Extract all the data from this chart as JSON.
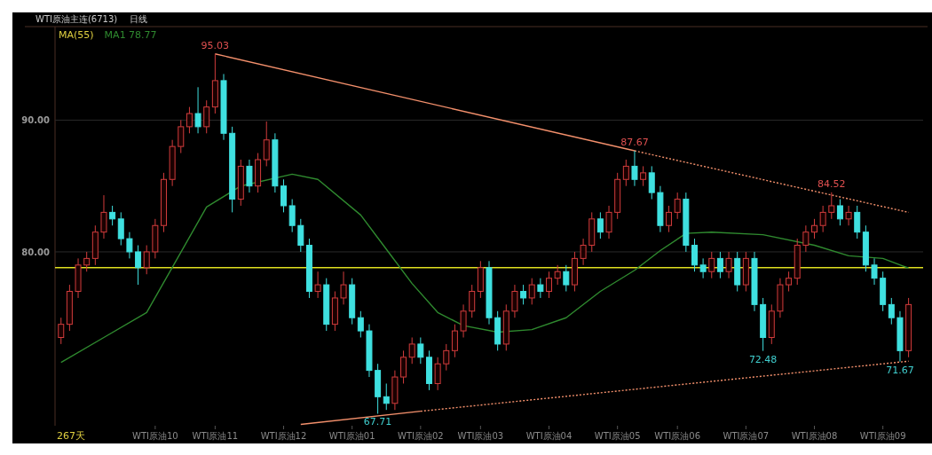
{
  "chart_data": {
    "type": "candlestick",
    "title": "WTI原油主连(6713)",
    "subtitle": "日线",
    "legend_title": "MA(55)",
    "legend": "top left",
    "grid": "y",
    "categories": [
      null,
      null,
      null,
      null,
      null,
      null,
      null,
      null,
      null,
      null,
      null,
      "WTI原油10",
      null,
      null,
      null,
      null,
      null,
      null,
      "WTI原油11",
      null,
      null,
      null,
      null,
      null,
      null,
      null,
      "WTI原油12",
      null,
      null,
      null,
      null,
      null,
      null,
      null,
      "WTI原油01",
      null,
      null,
      null,
      null,
      null,
      null,
      null,
      "WTI原油02",
      null,
      null,
      null,
      null,
      null,
      null,
      "WTI原油03",
      null,
      null,
      null,
      null,
      null,
      null,
      null,
      "WTI原油04",
      null,
      null,
      null,
      null,
      null,
      null,
      null,
      "WTI原油05",
      null,
      null,
      null,
      null,
      null,
      null,
      "WTI原油06",
      null,
      null,
      null,
      null,
      null,
      null,
      null,
      "WTI原油07",
      null,
      null,
      null,
      null,
      null,
      null,
      null,
      "WTI原油08",
      null,
      null,
      null,
      null,
      null,
      null,
      null,
      "WTI原油09",
      null,
      null,
      null
    ],
    "ylim": [
      66.8,
      97.1
    ],
    "yticks": [
      {
        "value": 80,
        "label": "80.00"
      },
      {
        "value": 90,
        "label": "90.00"
      }
    ],
    "ohlc": [
      [
        73.5,
        75.0,
        73.0,
        74.5
      ],
      [
        74.5,
        77.5,
        74.0,
        77.0
      ],
      [
        77.0,
        79.5,
        76.5,
        79.0
      ],
      [
        79.0,
        80.0,
        78.5,
        79.5
      ],
      [
        79.5,
        82.0,
        79.0,
        81.5
      ],
      [
        81.5,
        84.3,
        81.0,
        83.0
      ],
      [
        83.0,
        83.5,
        82.0,
        82.5
      ],
      [
        82.5,
        83.0,
        80.5,
        81.0
      ],
      [
        81.0,
        81.5,
        79.5,
        80.0
      ],
      [
        80.0,
        80.5,
        77.5,
        78.8
      ],
      [
        78.8,
        80.5,
        78.3,
        80.0
      ],
      [
        80.0,
        82.5,
        79.5,
        82.0
      ],
      [
        82.0,
        86.0,
        81.5,
        85.5
      ],
      [
        85.5,
        88.5,
        85.0,
        88.0
      ],
      [
        88.0,
        90.0,
        87.5,
        89.5
      ],
      [
        89.5,
        91.0,
        89.0,
        90.5
      ],
      [
        90.5,
        92.5,
        89.0,
        89.5
      ],
      [
        89.5,
        91.5,
        89.0,
        91.0
      ],
      [
        91.0,
        95.03,
        90.5,
        93.0
      ],
      [
        93.0,
        93.5,
        88.5,
        89.0
      ],
      [
        89.0,
        89.5,
        83.0,
        84.0
      ],
      [
        84.0,
        87.0,
        83.5,
        86.5
      ],
      [
        86.5,
        87.0,
        84.5,
        85.0
      ],
      [
        85.0,
        87.5,
        84.5,
        87.0
      ],
      [
        87.0,
        89.9,
        86.5,
        88.5
      ],
      [
        88.5,
        89.0,
        84.5,
        85.0
      ],
      [
        85.0,
        85.5,
        83.0,
        83.5
      ],
      [
        83.5,
        84.0,
        81.5,
        82.0
      ],
      [
        82.0,
        82.5,
        80.0,
        80.5
      ],
      [
        80.5,
        81.0,
        76.5,
        77.0
      ],
      [
        77.0,
        78.5,
        76.5,
        77.5
      ],
      [
        77.5,
        78.0,
        74.0,
        74.5
      ],
      [
        74.5,
        77.0,
        74.0,
        76.5
      ],
      [
        76.5,
        78.5,
        76.0,
        77.5
      ],
      [
        77.5,
        78.0,
        74.5,
        75.0
      ],
      [
        75.0,
        75.5,
        73.5,
        74.0
      ],
      [
        74.0,
        74.5,
        70.5,
        71.0
      ],
      [
        71.0,
        71.5,
        67.71,
        69.0
      ],
      [
        69.0,
        70.0,
        68.0,
        68.5
      ],
      [
        68.5,
        71.0,
        68.0,
        70.5
      ],
      [
        70.5,
        72.5,
        70.0,
        72.0
      ],
      [
        72.0,
        73.5,
        71.5,
        73.0
      ],
      [
        73.0,
        73.5,
        71.5,
        72.0
      ],
      [
        72.0,
        72.5,
        69.5,
        70.0
      ],
      [
        70.0,
        72.0,
        69.5,
        71.5
      ],
      [
        71.5,
        73.0,
        71.0,
        72.5
      ],
      [
        72.5,
        74.5,
        72.0,
        74.0
      ],
      [
        74.0,
        76.0,
        73.5,
        75.5
      ],
      [
        75.5,
        77.5,
        75.0,
        77.0
      ],
      [
        77.0,
        79.3,
        76.5,
        78.8
      ],
      [
        78.8,
        79.3,
        74.5,
        75.0
      ],
      [
        75.0,
        75.5,
        72.5,
        73.0
      ],
      [
        73.0,
        76.0,
        72.5,
        75.5
      ],
      [
        75.5,
        77.5,
        75.0,
        77.0
      ],
      [
        77.0,
        77.5,
        76.0,
        76.5
      ],
      [
        76.5,
        78.0,
        76.0,
        77.5
      ],
      [
        77.5,
        78.0,
        76.5,
        77.0
      ],
      [
        77.0,
        78.5,
        76.5,
        78.0
      ],
      [
        78.0,
        79.0,
        77.5,
        78.5
      ],
      [
        78.5,
        79.0,
        77.0,
        77.5
      ],
      [
        77.5,
        80.0,
        77.0,
        79.5
      ],
      [
        79.5,
        81.0,
        79.0,
        80.5
      ],
      [
        80.5,
        83.0,
        80.0,
        82.5
      ],
      [
        82.5,
        83.0,
        81.0,
        81.5
      ],
      [
        81.5,
        83.5,
        81.0,
        83.0
      ],
      [
        83.0,
        86.0,
        82.5,
        85.5
      ],
      [
        85.5,
        87.0,
        85.0,
        86.5
      ],
      [
        86.5,
        87.67,
        85.0,
        85.5
      ],
      [
        85.5,
        86.5,
        85.0,
        86.0
      ],
      [
        86.0,
        86.5,
        84.0,
        84.5
      ],
      [
        84.5,
        85.0,
        81.5,
        82.0
      ],
      [
        82.0,
        83.5,
        81.5,
        83.0
      ],
      [
        83.0,
        84.5,
        82.5,
        84.0
      ],
      [
        84.0,
        84.5,
        80.0,
        80.5
      ],
      [
        80.5,
        81.0,
        78.5,
        79.0
      ],
      [
        79.0,
        79.5,
        78.0,
        78.5
      ],
      [
        78.5,
        80.0,
        78.0,
        79.5
      ],
      [
        79.5,
        80.0,
        78.0,
        78.5
      ],
      [
        78.5,
        80.0,
        78.0,
        79.5
      ],
      [
        79.5,
        80.0,
        77.0,
        77.5
      ],
      [
        77.5,
        80.0,
        77.0,
        79.5
      ],
      [
        79.5,
        80.0,
        75.5,
        76.0
      ],
      [
        76.0,
        76.5,
        72.48,
        73.5
      ],
      [
        73.5,
        76.0,
        73.0,
        75.5
      ],
      [
        75.5,
        78.0,
        75.0,
        77.5
      ],
      [
        77.5,
        78.5,
        77.0,
        78.0
      ],
      [
        78.0,
        81.0,
        77.5,
        80.5
      ],
      [
        80.5,
        82.0,
        80.0,
        81.5
      ],
      [
        81.5,
        82.5,
        81.0,
        82.0
      ],
      [
        82.0,
        83.5,
        81.5,
        83.0
      ],
      [
        83.0,
        84.52,
        82.5,
        83.5
      ],
      [
        83.5,
        84.0,
        82.0,
        82.5
      ],
      [
        82.5,
        83.5,
        82.0,
        83.0
      ],
      [
        83.0,
        83.5,
        81.0,
        81.5
      ],
      [
        81.5,
        82.0,
        78.5,
        79.0
      ],
      [
        79.0,
        79.5,
        77.5,
        78.0
      ],
      [
        78.0,
        78.5,
        75.5,
        76.0
      ],
      [
        76.0,
        76.5,
        74.5,
        75.0
      ],
      [
        75.0,
        75.5,
        71.67,
        72.5
      ],
      [
        72.5,
        76.5,
        72.0,
        76.0
      ]
    ],
    "series": [
      {
        "type": "line",
        "name": "MA1 78.77",
        "color": "#2f8a2f",
        "values": [
          71.6,
          null,
          null,
          null,
          null,
          73.5,
          null,
          null,
          null,
          null,
          75.4,
          null,
          null,
          null,
          null,
          null,
          null,
          83.4,
          null,
          null,
          null,
          85.0,
          null,
          null,
          null,
          null,
          null,
          85.9,
          null,
          null,
          85.5,
          null,
          null,
          null,
          null,
          82.8,
          null,
          null,
          80.2,
          null,
          null,
          77.6,
          null,
          null,
          75.4,
          null,
          null,
          74.4,
          null,
          null,
          null,
          73.9,
          null,
          null,
          null,
          74.1,
          null,
          null,
          null,
          75.0,
          null,
          null,
          null,
          77.0,
          null,
          null,
          null,
          78.6,
          null,
          null,
          80.1,
          null,
          null,
          81.4,
          null,
          null,
          81.5,
          null,
          null,
          null,
          null,
          null,
          81.3,
          null,
          null,
          null,
          null,
          null,
          80.5,
          null,
          null,
          null,
          79.7,
          null,
          null,
          null,
          79.5,
          null,
          null,
          78.77
        ]
      },
      {
        "type": "line",
        "color": "#f4906c",
        "values": [
          null,
          null,
          null,
          null,
          null,
          null,
          null,
          null,
          null,
          null,
          null,
          null,
          null,
          null,
          null,
          null,
          null,
          null,
          95.03,
          null,
          null,
          null,
          null,
          null,
          null,
          null,
          null,
          null,
          null,
          null,
          null,
          null,
          null,
          null,
          null,
          null,
          null,
          null,
          null,
          null,
          null,
          null,
          null,
          null,
          null,
          null,
          null,
          null,
          null,
          null,
          null,
          null,
          null,
          null,
          null,
          null,
          null,
          null,
          null,
          null,
          null,
          null,
          null,
          null,
          null,
          null,
          null,
          87.67,
          null,
          null,
          null,
          null,
          null,
          null,
          null,
          null,
          null,
          null,
          null,
          null,
          null,
          null,
          null,
          null,
          null,
          null,
          null,
          null,
          null,
          null,
          null,
          null,
          null,
          null,
          null,
          null,
          null,
          null,
          null,
          null
        ]
      },
      {
        "type": "line",
        "color": "#f4906c",
        "line_style": "dotted",
        "values": [
          null,
          null,
          null,
          null,
          null,
          null,
          null,
          null,
          null,
          null,
          null,
          null,
          null,
          null,
          null,
          null,
          null,
          null,
          null,
          null,
          null,
          null,
          null,
          null,
          null,
          null,
          null,
          null,
          null,
          null,
          null,
          null,
          null,
          null,
          null,
          null,
          null,
          null,
          null,
          null,
          null,
          null,
          null,
          null,
          null,
          null,
          null,
          null,
          null,
          null,
          null,
          null,
          null,
          null,
          null,
          null,
          null,
          null,
          null,
          null,
          null,
          null,
          null,
          null,
          null,
          null,
          null,
          87.67,
          null,
          null,
          null,
          null,
          null,
          null,
          null,
          null,
          null,
          null,
          null,
          null,
          null,
          null,
          null,
          null,
          null,
          null,
          null,
          null,
          null,
          null,
          null,
          null,
          null,
          null,
          null,
          null,
          null,
          null,
          null,
          83.0
        ]
      },
      {
        "type": "line",
        "color": "#f4906c",
        "values": [
          null,
          null,
          null,
          null,
          null,
          null,
          null,
          null,
          null,
          null,
          null,
          null,
          null,
          null,
          null,
          null,
          null,
          null,
          null,
          null,
          null,
          null,
          null,
          null,
          null,
          null,
          null,
          null,
          66.9,
          null,
          null,
          null,
          null,
          null,
          null,
          null,
          null,
          null,
          null,
          null,
          null,
          null,
          67.9,
          null,
          null,
          null,
          null,
          null,
          null,
          null,
          null,
          null,
          null,
          null,
          null,
          null,
          null,
          null,
          null,
          null,
          null,
          null,
          null,
          null,
          null,
          null,
          null,
          null,
          null,
          null,
          null,
          null,
          null,
          null,
          null,
          null,
          null,
          null,
          null,
          null,
          null,
          null,
          null,
          null,
          null,
          null,
          null,
          null,
          null,
          null,
          null,
          null,
          null,
          null,
          null,
          null,
          null,
          null,
          null,
          null
        ]
      },
      {
        "type": "line",
        "color": "#f4906c",
        "line_style": "dotted",
        "values": [
          null,
          null,
          null,
          null,
          null,
          null,
          null,
          null,
          null,
          null,
          null,
          null,
          null,
          null,
          null,
          null,
          null,
          null,
          null,
          null,
          null,
          null,
          null,
          null,
          null,
          null,
          null,
          null,
          null,
          null,
          null,
          null,
          null,
          null,
          null,
          null,
          null,
          null,
          null,
          null,
          null,
          null,
          67.9,
          null,
          null,
          null,
          null,
          null,
          null,
          null,
          null,
          null,
          null,
          null,
          null,
          null,
          null,
          null,
          null,
          null,
          null,
          null,
          null,
          null,
          null,
          null,
          null,
          null,
          null,
          null,
          null,
          null,
          null,
          null,
          null,
          null,
          null,
          null,
          null,
          null,
          null,
          null,
          null,
          null,
          null,
          null,
          null,
          null,
          null,
          null,
          null,
          null,
          null,
          null,
          null,
          null,
          null,
          null,
          null,
          71.7
        ]
      }
    ],
    "ref_lines": [
      {
        "axis": "y",
        "value": 78.8,
        "color": "#e0e020"
      }
    ],
    "annotations": [
      "267天",
      "95.03",
      "87.67",
      "84.52",
      "67.71",
      "72.48",
      "71.67"
    ]
  }
}
